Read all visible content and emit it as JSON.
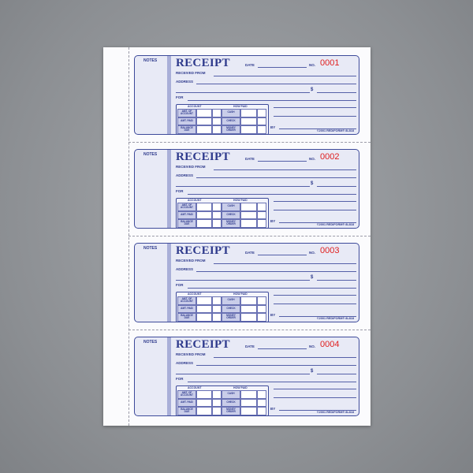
{
  "receipts": [
    {
      "number": "0001"
    },
    {
      "number": "0002"
    },
    {
      "number": "0003"
    },
    {
      "number": "0004"
    }
  ],
  "labels": {
    "notes": "NOTES",
    "title": "RECEIPT",
    "date": "DATE",
    "no": "NO.",
    "received_from": "RECEIVED FROM",
    "address": "ADDRESS",
    "dollar": "$",
    "for": "FOR",
    "account": "ACCOUNT",
    "how_paid": "HOW PAID",
    "amt_of_account": "AMT. OF ACCOUNT",
    "amt_paid": "AMT. PAID",
    "balance_due": "BALANCE DUE",
    "cash": "CASH",
    "check": "CHECK",
    "money_order": "MONEY ORDER",
    "by": "BY",
    "copyright": "©2001 REDIFORM® 8L818"
  },
  "colors": {
    "ink": "#2e3a8c",
    "number": "#e02020",
    "form_bg": "#e8eaf6"
  }
}
